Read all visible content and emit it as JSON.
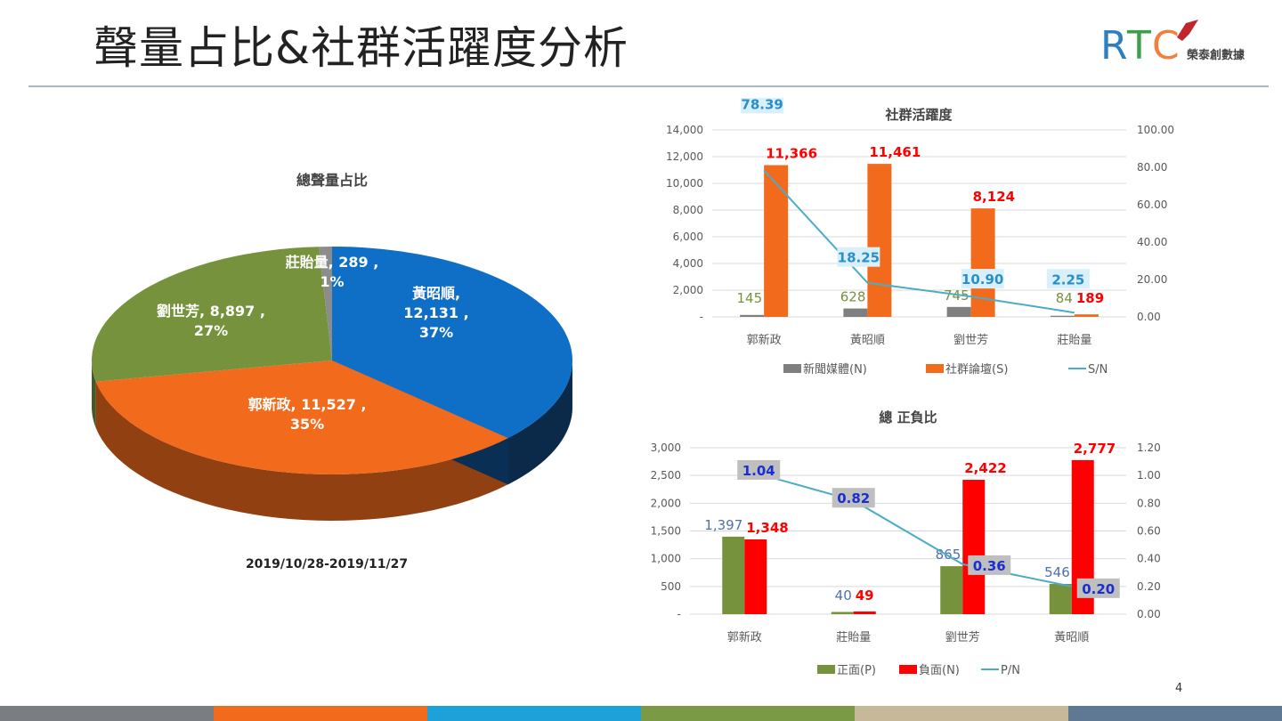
{
  "title": "聲量占比&社群活躍度分析",
  "logo": {
    "text": "RTC",
    "subtitle": "榮泰創數據"
  },
  "page_number": "4",
  "colors": {
    "blue": "#0f6fc6",
    "orange": "#f26b1d",
    "green": "#76923c",
    "gray": "#7f7f7f",
    "red": "#ff0000",
    "line": "#4bacc6",
    "stripes": [
      "#7a7e82",
      "#f26b1d",
      "#1ea0d8",
      "#7a9a45",
      "#c8b89a",
      "#5f7893"
    ]
  },
  "chart_data": [
    {
      "type": "pie",
      "title": "總聲量占比",
      "subtitle": "2019/10/28-2019/11/27",
      "slices": [
        {
          "name": "黃昭順",
          "value": 12131,
          "percent": "37%",
          "label": "黃昭順,\n12,131 ,\n37%",
          "color": "#0f6fc6"
        },
        {
          "name": "郭新政",
          "value": 11527,
          "percent": "35%",
          "label": "郭新政, 11,527 ,\n35%",
          "color": "#f26b1d"
        },
        {
          "name": "劉世芳",
          "value": 8897,
          "percent": "27%",
          "label": "劉世芳, 8,897 ,\n27%",
          "color": "#76923c"
        },
        {
          "name": "莊貽量",
          "value": 289,
          "percent": "1%",
          "label": "莊貽量, 289 ,\n1%",
          "color": "#8c8c8c"
        }
      ]
    },
    {
      "type": "bar",
      "title": "社群活躍度",
      "categories": [
        "郭新政",
        "黃昭順",
        "劉世芳",
        "莊貽量"
      ],
      "ylim": [
        0,
        14000
      ],
      "yticks": [
        "-",
        "2,000",
        "4,000",
        "6,000",
        "8,000",
        "10,000",
        "12,000",
        "14,000"
      ],
      "y2lim": [
        0,
        100
      ],
      "y2ticks": [
        "0.00",
        "20.00",
        "40.00",
        "60.00",
        "80.00",
        "100.00"
      ],
      "series": [
        {
          "name": "新聞媒體(N)",
          "kind": "bar",
          "values": [
            145,
            628,
            745,
            84
          ],
          "labels": [
            "145",
            "628",
            "745",
            "84"
          ],
          "color": "#7f7f7f",
          "labelColor": "#76923c"
        },
        {
          "name": "社群論壇(S)",
          "kind": "bar",
          "values": [
            11366,
            11461,
            8124,
            189
          ],
          "labels": [
            "11,366",
            "11,461",
            "8,124",
            "189"
          ],
          "color": "#f26b1d",
          "labelColor": "#ff0000"
        },
        {
          "name": "S/N",
          "kind": "line",
          "axis": "right",
          "values": [
            78.39,
            18.25,
            10.9,
            2.25
          ],
          "labels": [
            "78.39",
            "18.25",
            "10.90",
            "2.25"
          ],
          "color": "#4bacc6"
        }
      ]
    },
    {
      "type": "bar",
      "title": "總 正負比",
      "categories": [
        "郭新政",
        "莊貽量",
        "劉世芳",
        "黃昭順"
      ],
      "ylim": [
        0,
        3000
      ],
      "yticks": [
        "-",
        "500",
        "1,000",
        "1,500",
        "2,000",
        "2,500",
        "3,000"
      ],
      "y2lim": [
        0,
        1.2
      ],
      "y2ticks": [
        "0.00",
        "0.20",
        "0.40",
        "0.60",
        "0.80",
        "1.00",
        "1.20"
      ],
      "series": [
        {
          "name": "正面(P)",
          "kind": "bar",
          "values": [
            1397,
            40,
            865,
            546
          ],
          "labels": [
            "1,397",
            "40",
            "865",
            "546"
          ],
          "color": "#76923c",
          "labelColor": "#4f6fa8"
        },
        {
          "name": "負面(N)",
          "kind": "bar",
          "values": [
            1348,
            49,
            2422,
            2777
          ],
          "labels": [
            "1,348",
            "49",
            "2,422",
            "2,777"
          ],
          "color": "#ff0000",
          "labelColor": "#ff0000"
        },
        {
          "name": "P/N",
          "kind": "line",
          "axis": "right",
          "values": [
            1.04,
            0.82,
            0.36,
            0.2
          ],
          "labels": [
            "1.04",
            "0.82",
            "0.36",
            "0.20"
          ],
          "color": "#4bacc6"
        }
      ]
    }
  ]
}
